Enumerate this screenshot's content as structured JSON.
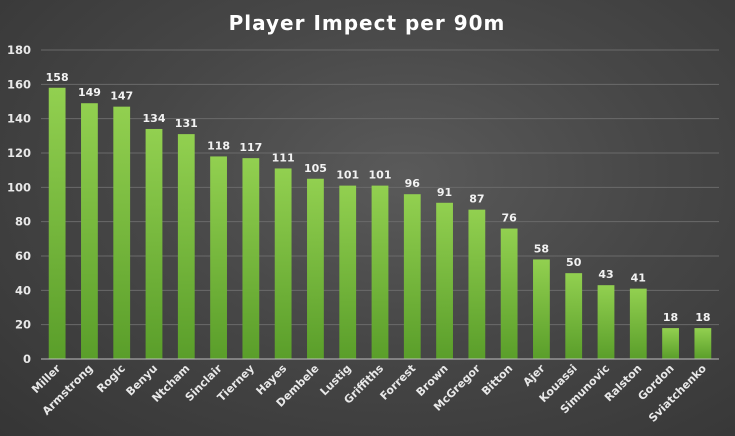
{
  "chart_data": {
    "type": "bar",
    "title": "Player Impect per 90m",
    "xlabel": "",
    "ylabel": "",
    "ylim": [
      0,
      180
    ],
    "yticks": [
      0,
      20,
      40,
      60,
      80,
      100,
      120,
      140,
      160,
      180
    ],
    "grid": true,
    "categories": [
      "Miller",
      "Armstrong",
      "Rogic",
      "Benyu",
      "Ntcham",
      "Sinclair",
      "Tierney",
      "Hayes",
      "Dembele",
      "Lustig",
      "Griffiths",
      "Forrest",
      "Brown",
      "McGregor",
      "Bitton",
      "Ajer",
      "Kouassi",
      "Simunovic",
      "Ralston",
      "Gordon",
      "Sviatchenko"
    ],
    "values": [
      158,
      149,
      147,
      134,
      131,
      118,
      117,
      111,
      105,
      101,
      101,
      96,
      91,
      87,
      76,
      58,
      50,
      43,
      41,
      18,
      18
    ],
    "colors": {
      "bar_top": "#92d050",
      "bar_bottom": "#5a9e2a"
    }
  }
}
